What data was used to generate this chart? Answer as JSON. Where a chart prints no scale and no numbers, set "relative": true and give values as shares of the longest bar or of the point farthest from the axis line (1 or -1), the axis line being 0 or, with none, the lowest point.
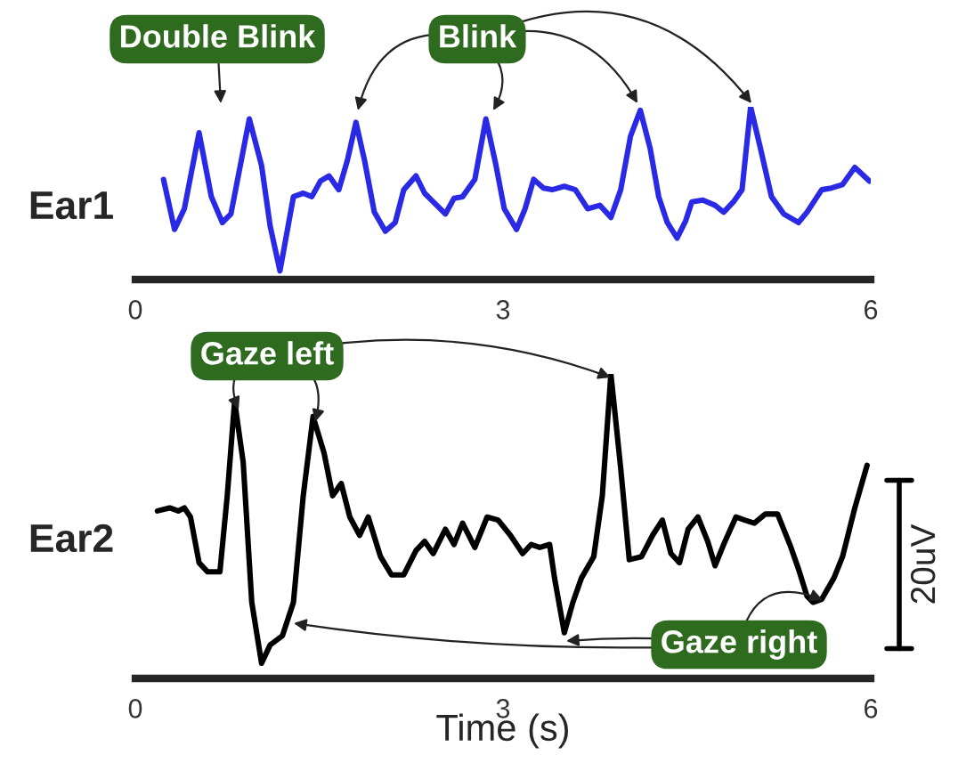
{
  "chart_data": [
    {
      "type": "line",
      "relative": true,
      "ylabel": "Ear1",
      "xlim": [
        0,
        6
      ],
      "xticks": [
        0,
        3,
        6
      ],
      "grid": false,
      "legend": false,
      "series": [
        {
          "color": "#2a2ae6",
          "x": [
            0.23,
            0.32,
            0.4,
            0.52,
            0.62,
            0.71,
            0.78,
            0.93,
            1.03,
            1.1,
            1.18,
            1.29,
            1.37,
            1.44,
            1.51,
            1.58,
            1.66,
            1.73,
            1.8,
            1.87,
            1.95,
            2.04,
            2.12,
            2.19,
            2.29,
            2.36,
            2.43,
            2.53,
            2.6,
            2.67,
            2.77,
            2.86,
            2.94,
            3.01,
            3.11,
            3.18,
            3.25,
            3.33,
            3.4,
            3.5,
            3.59,
            3.69,
            3.79,
            3.88,
            3.96,
            4.04,
            4.12,
            4.2,
            4.27,
            4.34,
            4.42,
            4.49,
            4.54,
            4.63,
            4.73,
            4.8,
            4.88,
            4.95,
            5.02,
            5.1,
            5.19,
            5.29,
            5.41,
            5.48,
            5.6,
            5.68,
            5.77,
            5.87,
            5.99
          ],
          "values": [
            0.58,
            0.29,
            0.41,
            0.85,
            0.48,
            0.33,
            0.38,
            0.93,
            0.66,
            0.31,
            0.05,
            0.48,
            0.5,
            0.48,
            0.57,
            0.6,
            0.52,
            0.69,
            0.91,
            0.69,
            0.39,
            0.28,
            0.33,
            0.52,
            0.6,
            0.5,
            0.45,
            0.38,
            0.47,
            0.48,
            0.58,
            0.93,
            0.67,
            0.41,
            0.29,
            0.41,
            0.58,
            0.53,
            0.52,
            0.54,
            0.52,
            0.41,
            0.43,
            0.36,
            0.52,
            0.83,
            0.98,
            0.76,
            0.48,
            0.33,
            0.24,
            0.34,
            0.45,
            0.46,
            0.43,
            0.39,
            0.45,
            0.52,
            1.0,
            0.76,
            0.48,
            0.38,
            0.33,
            0.39,
            0.52,
            0.53,
            0.55,
            0.65,
            0.57
          ]
        }
      ],
      "annotations": [
        "Double Blink",
        "Blink"
      ]
    },
    {
      "type": "line",
      "relative": true,
      "ylabel": "Ear2",
      "xlabel": "Time (s)",
      "xlim": [
        0,
        6
      ],
      "xticks": [
        0,
        3,
        6
      ],
      "grid": false,
      "legend": false,
      "series": [
        {
          "color": "#000000",
          "x": [
            0.18,
            0.28,
            0.35,
            0.4,
            0.45,
            0.52,
            0.59,
            0.69,
            0.75,
            0.81,
            0.88,
            0.95,
            1.03,
            1.1,
            1.2,
            1.29,
            1.37,
            1.45,
            1.54,
            1.61,
            1.68,
            1.75,
            1.83,
            1.9,
            2.0,
            2.09,
            2.19,
            2.29,
            2.36,
            2.43,
            2.53,
            2.6,
            2.67,
            2.77,
            2.87,
            2.96,
            3.06,
            3.16,
            3.23,
            3.3,
            3.38,
            3.42,
            3.5,
            3.57,
            3.64,
            3.74,
            3.81,
            3.88,
            3.96,
            4.03,
            4.13,
            4.22,
            4.3,
            4.37,
            4.44,
            4.51,
            4.59,
            4.67,
            4.73,
            4.8,
            4.9,
            4.97,
            5.05,
            5.14,
            5.24,
            5.34,
            5.41,
            5.48,
            5.53,
            5.6,
            5.7,
            5.77,
            5.87,
            5.97
          ],
          "values": [
            0.55,
            0.56,
            0.55,
            0.56,
            0.53,
            0.38,
            0.35,
            0.35,
            0.6,
            0.91,
            0.71,
            0.25,
            0.05,
            0.11,
            0.14,
            0.25,
            0.6,
            0.86,
            0.74,
            0.6,
            0.64,
            0.53,
            0.47,
            0.53,
            0.4,
            0.34,
            0.34,
            0.42,
            0.45,
            0.41,
            0.49,
            0.44,
            0.51,
            0.43,
            0.53,
            0.52,
            0.47,
            0.41,
            0.44,
            0.43,
            0.44,
            0.33,
            0.15,
            0.25,
            0.33,
            0.4,
            0.6,
            1.0,
            0.69,
            0.39,
            0.4,
            0.47,
            0.52,
            0.41,
            0.38,
            0.49,
            0.53,
            0.45,
            0.37,
            0.44,
            0.53,
            0.52,
            0.51,
            0.54,
            0.54,
            0.44,
            0.36,
            0.27,
            0.25,
            0.26,
            0.33,
            0.4,
            0.56,
            0.7
          ]
        }
      ],
      "annotations": [
        "Gaze left",
        "Gaze right",
        "20uV"
      ]
    }
  ]
}
